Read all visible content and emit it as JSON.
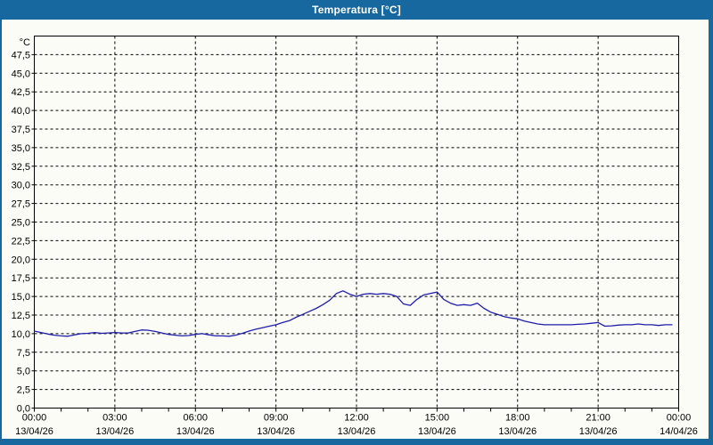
{
  "window": {
    "title": "Temperatura [°C]"
  },
  "colors": {
    "titlebar_bg": "#17689e",
    "titlebar_text": "#ffffff",
    "frame": "#17689e",
    "content_bg": "#fcfcf7",
    "plot_bg": "#fcfcf7",
    "plot_border": "#000000",
    "gridline": "#000000",
    "axis_text": "#000000",
    "line": "#1e1eaa"
  },
  "chart_data": {
    "type": "line",
    "title": "Temperatura [°C]",
    "y_unit": "°C",
    "xlabel": "",
    "ylabel": "",
    "ylim": [
      0,
      50
    ],
    "y_grid_step": 2.5,
    "y_tick_labels": [
      "0,0",
      "2,5",
      "5,0",
      "7,5",
      "10,0",
      "12,5",
      "15,0",
      "17,5",
      "20,0",
      "22,5",
      "25,0",
      "27,5",
      "30,0",
      "32,5",
      "35,0",
      "37,5",
      "40,0",
      "42,5",
      "45,0",
      "47,5"
    ],
    "x_range_hours": [
      0,
      24
    ],
    "x_major_step_hours": 3,
    "x_minor_step_hours": 1,
    "grid_style": "dashed",
    "legend": "none",
    "x_ticks": [
      {
        "time": "00:00",
        "date": "13/04/26"
      },
      {
        "time": "03:00",
        "date": "13/04/26"
      },
      {
        "time": "06:00",
        "date": "13/04/26"
      },
      {
        "time": "09:00",
        "date": "13/04/26"
      },
      {
        "time": "12:00",
        "date": "13/04/26"
      },
      {
        "time": "15:00",
        "date": "13/04/26"
      },
      {
        "time": "18:00",
        "date": "13/04/26"
      },
      {
        "time": "21:00",
        "date": "13/04/26"
      },
      {
        "time": "00:00",
        "date": "14/04/26"
      }
    ],
    "series": [
      {
        "name": "Temperatura",
        "color": "#1e1eaa",
        "points_hours_degC": [
          [
            0.0,
            10.35
          ],
          [
            0.25,
            10.15
          ],
          [
            0.5,
            9.95
          ],
          [
            0.75,
            9.8
          ],
          [
            1.0,
            9.7
          ],
          [
            1.25,
            9.65
          ],
          [
            1.5,
            9.85
          ],
          [
            1.75,
            10.0
          ],
          [
            2.0,
            10.05
          ],
          [
            2.25,
            10.15
          ],
          [
            2.5,
            10.05
          ],
          [
            2.75,
            10.1
          ],
          [
            3.0,
            10.15
          ],
          [
            3.25,
            10.1
          ],
          [
            3.5,
            10.1
          ],
          [
            3.75,
            10.3
          ],
          [
            4.0,
            10.5
          ],
          [
            4.25,
            10.45
          ],
          [
            4.5,
            10.3
          ],
          [
            4.75,
            10.1
          ],
          [
            5.0,
            9.9
          ],
          [
            5.25,
            9.8
          ],
          [
            5.5,
            9.7
          ],
          [
            5.75,
            9.75
          ],
          [
            6.0,
            9.9
          ],
          [
            6.25,
            10.0
          ],
          [
            6.5,
            9.85
          ],
          [
            6.75,
            9.7
          ],
          [
            7.0,
            9.7
          ],
          [
            7.25,
            9.65
          ],
          [
            7.5,
            9.8
          ],
          [
            7.75,
            10.05
          ],
          [
            8.0,
            10.35
          ],
          [
            8.25,
            10.6
          ],
          [
            8.5,
            10.8
          ],
          [
            8.75,
            11.0
          ],
          [
            9.0,
            11.2
          ],
          [
            9.25,
            11.5
          ],
          [
            9.5,
            11.75
          ],
          [
            9.75,
            12.2
          ],
          [
            10.0,
            12.6
          ],
          [
            10.25,
            13.0
          ],
          [
            10.5,
            13.4
          ],
          [
            10.75,
            13.9
          ],
          [
            11.0,
            14.5
          ],
          [
            11.25,
            15.4
          ],
          [
            11.5,
            15.75
          ],
          [
            11.75,
            15.3
          ],
          [
            12.0,
            15.0
          ],
          [
            12.25,
            15.3
          ],
          [
            12.5,
            15.4
          ],
          [
            12.75,
            15.3
          ],
          [
            13.0,
            15.4
          ],
          [
            13.25,
            15.3
          ],
          [
            13.5,
            15.0
          ],
          [
            13.75,
            14.0
          ],
          [
            14.0,
            13.8
          ],
          [
            14.25,
            14.6
          ],
          [
            14.5,
            15.2
          ],
          [
            14.75,
            15.4
          ],
          [
            15.0,
            15.6
          ],
          [
            15.25,
            14.6
          ],
          [
            15.5,
            14.1
          ],
          [
            15.75,
            13.8
          ],
          [
            16.0,
            13.9
          ],
          [
            16.25,
            13.8
          ],
          [
            16.5,
            14.1
          ],
          [
            16.75,
            13.4
          ],
          [
            17.0,
            12.9
          ],
          [
            17.25,
            12.6
          ],
          [
            17.5,
            12.3
          ],
          [
            17.75,
            12.1
          ],
          [
            18.0,
            12.0
          ],
          [
            18.25,
            11.7
          ],
          [
            18.5,
            11.5
          ],
          [
            18.75,
            11.3
          ],
          [
            19.0,
            11.2
          ],
          [
            19.25,
            11.2
          ],
          [
            19.5,
            11.2
          ],
          [
            19.75,
            11.2
          ],
          [
            20.0,
            11.2
          ],
          [
            20.25,
            11.25
          ],
          [
            20.5,
            11.3
          ],
          [
            20.75,
            11.4
          ],
          [
            21.0,
            11.5
          ],
          [
            21.25,
            11.0
          ],
          [
            21.5,
            11.05
          ],
          [
            21.75,
            11.15
          ],
          [
            22.0,
            11.2
          ],
          [
            22.25,
            11.2
          ],
          [
            22.5,
            11.3
          ],
          [
            22.75,
            11.2
          ],
          [
            23.0,
            11.2
          ],
          [
            23.25,
            11.1
          ],
          [
            23.5,
            11.2
          ],
          [
            23.75,
            11.2
          ]
        ]
      }
    ]
  }
}
